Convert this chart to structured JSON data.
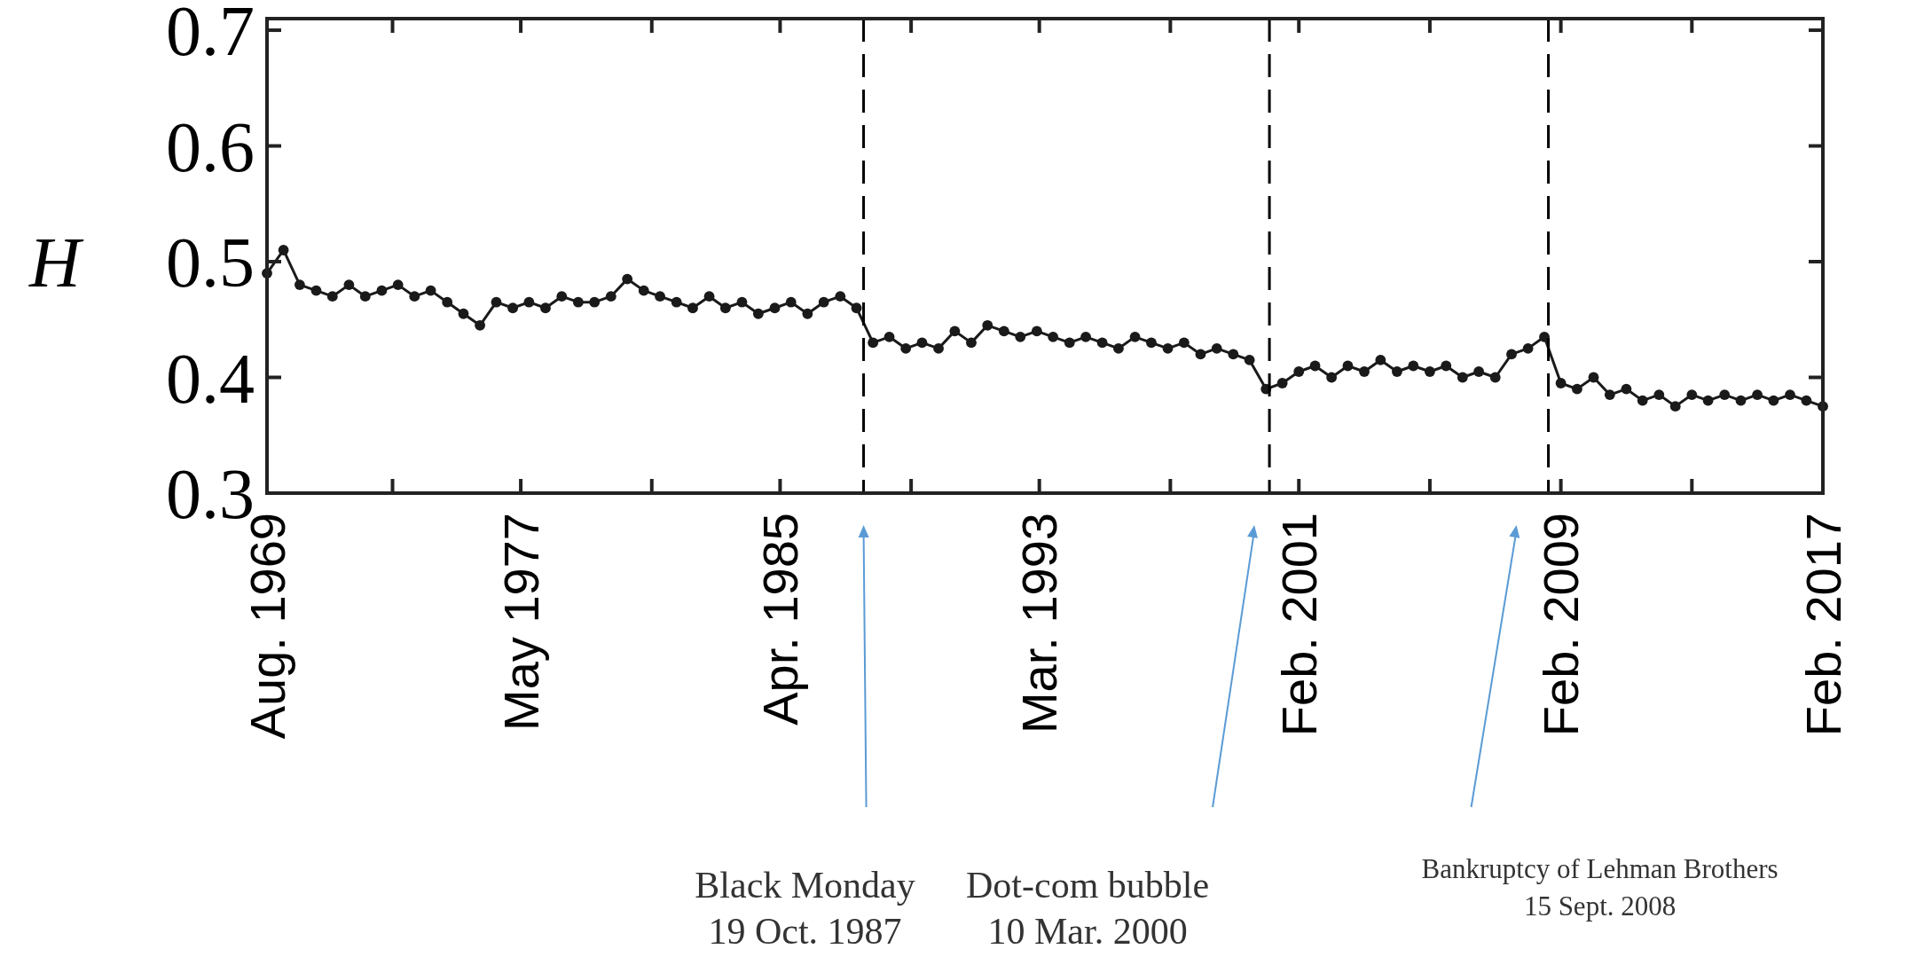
{
  "chart_data": {
    "type": "line",
    "ylabel": "H",
    "marker": "circle",
    "line_style": "solid",
    "grid": false,
    "x": [
      "1969-08",
      "1970-02",
      "1970-08",
      "1971-02",
      "1971-08",
      "1972-02",
      "1972-08",
      "1973-02",
      "1973-08",
      "1974-02",
      "1974-08",
      "1975-02",
      "1975-08",
      "1976-02",
      "1976-08",
      "1977-02",
      "1977-08",
      "1978-02",
      "1978-08",
      "1979-02",
      "1979-08",
      "1980-02",
      "1980-08",
      "1981-02",
      "1981-08",
      "1982-02",
      "1982-08",
      "1983-02",
      "1983-08",
      "1984-02",
      "1984-08",
      "1985-02",
      "1985-08",
      "1986-02",
      "1986-08",
      "1987-02",
      "1987-08",
      "1988-02",
      "1988-08",
      "1989-02",
      "1989-08",
      "1990-02",
      "1990-08",
      "1991-02",
      "1991-08",
      "1992-02",
      "1992-08",
      "1993-02",
      "1993-08",
      "1994-02",
      "1994-08",
      "1995-02",
      "1995-08",
      "1996-02",
      "1996-08",
      "1997-02",
      "1997-08",
      "1998-02",
      "1998-08",
      "1999-02",
      "1999-08",
      "2000-02",
      "2000-08",
      "2001-02",
      "2001-08",
      "2002-02",
      "2002-08",
      "2003-02",
      "2003-08",
      "2004-02",
      "2004-08",
      "2005-02",
      "2005-08",
      "2006-02",
      "2006-08",
      "2007-02",
      "2007-08",
      "2008-02",
      "2008-08",
      "2009-02",
      "2009-08",
      "2010-02",
      "2010-08",
      "2011-02",
      "2011-08",
      "2012-02",
      "2012-08",
      "2013-02",
      "2013-08",
      "2014-02",
      "2014-08",
      "2015-02",
      "2015-08",
      "2016-02",
      "2016-08",
      "2017-02"
    ],
    "series": [
      {
        "color": "#1a1a1a",
        "values": [
          0.49,
          0.51,
          0.48,
          0.475,
          0.47,
          0.48,
          0.47,
          0.475,
          0.48,
          0.47,
          0.475,
          0.465,
          0.455,
          0.445,
          0.465,
          0.46,
          0.465,
          0.46,
          0.47,
          0.465,
          0.465,
          0.47,
          0.485,
          0.475,
          0.47,
          0.465,
          0.46,
          0.47,
          0.46,
          0.465,
          0.455,
          0.46,
          0.465,
          0.455,
          0.465,
          0.47,
          0.46,
          0.43,
          0.435,
          0.425,
          0.43,
          0.425,
          0.44,
          0.43,
          0.445,
          0.44,
          0.435,
          0.44,
          0.435,
          0.43,
          0.435,
          0.43,
          0.425,
          0.435,
          0.43,
          0.425,
          0.43,
          0.42,
          0.425,
          0.42,
          0.415,
          0.39,
          0.395,
          0.405,
          0.41,
          0.4,
          0.41,
          0.405,
          0.415,
          0.405,
          0.41,
          0.405,
          0.41,
          0.4,
          0.405,
          0.4,
          0.42,
          0.425,
          0.435,
          0.395,
          0.39,
          0.4,
          0.385,
          0.39,
          0.38,
          0.385,
          0.375,
          0.385,
          0.38,
          0.385,
          0.38,
          0.385,
          0.38,
          0.385,
          0.38,
          0.375
        ]
      }
    ],
    "xlim": [
      "1969-08",
      "2017-02"
    ],
    "xticks": [
      {
        "value": "1969-08",
        "label": "Aug. 1969"
      },
      {
        "value": "1973-06",
        "label": null
      },
      {
        "value": "1977-05",
        "label": "May 1977"
      },
      {
        "value": "1981-05",
        "label": null
      },
      {
        "value": "1985-04",
        "label": "Apr. 1985"
      },
      {
        "value": "1989-04",
        "label": null
      },
      {
        "value": "1993-03",
        "label": "Mar. 1993"
      },
      {
        "value": "1997-03",
        "label": null
      },
      {
        "value": "2001-02",
        "label": "Feb. 2001"
      },
      {
        "value": "2005-02",
        "label": null
      },
      {
        "value": "2009-02",
        "label": "Feb. 2009"
      },
      {
        "value": "2013-02",
        "label": null
      },
      {
        "value": "2017-02",
        "label": "Feb. 2017"
      }
    ],
    "ylim": [
      0.3,
      0.71
    ],
    "yticks": [
      0.3,
      0.4,
      0.5,
      0.6,
      0.7
    ],
    "ref_lines": [
      {
        "axis": "x",
        "value": "1987-10-19",
        "color": "#000000",
        "line_style": "dashed"
      },
      {
        "axis": "x",
        "value": "2000-03-10",
        "color": "#000000",
        "line_style": "dashed"
      },
      {
        "axis": "x",
        "value": "2008-09-15",
        "color": "#000000",
        "line_style": "dashed"
      }
    ],
    "annotations": [
      "Black Monday\n19 Oct. 1987",
      "Dot-com bubble\n10 Mar. 2000",
      "Bankruptcy of Lehman Brothers\n15 Sept. 2008"
    ]
  }
}
